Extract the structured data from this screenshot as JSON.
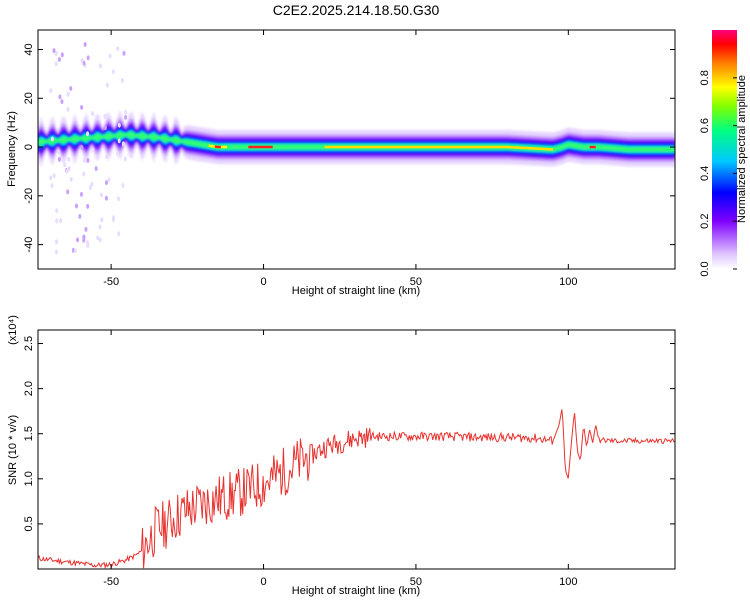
{
  "title": "C2E2.2025.214.18.50.G30",
  "colors": {
    "snr_line": "#e8322e",
    "colorscale": [
      "#ffffff",
      "#e8d8ff",
      "#8000ff",
      "#0000ff",
      "#00c8ff",
      "#00ff80",
      "#ffff00",
      "#ff8000",
      "#ff0000",
      "#ff0080"
    ]
  },
  "chart_data": [
    {
      "type": "heatmap",
      "title": "C2E2.2025.214.18.50.G30",
      "xlabel": "Height of straight line (km)",
      "ylabel": "Frequency (Hz)",
      "xlim": [
        -74,
        135
      ],
      "ylim": [
        -50,
        48
      ],
      "xticks": [
        -50,
        0,
        50,
        100
      ],
      "xtick_labels": [
        "-50",
        "0",
        "50",
        "100"
      ],
      "yticks": [
        -40,
        -20,
        0,
        20,
        40
      ],
      "ytick_labels": [
        "-40",
        "-20",
        "0",
        "20",
        "40"
      ],
      "colorbar": {
        "label": "Normalized spectral amplitude",
        "range": [
          0,
          1
        ],
        "ticks": [
          0.0,
          0.2,
          0.4,
          0.6,
          0.8
        ],
        "tick_labels": [
          "0.0",
          "0.2",
          "0.4",
          "0.6",
          "0.8"
        ]
      },
      "ridge": {
        "height_km": [
          -74,
          -65,
          -55,
          -45,
          -35,
          -25,
          -15,
          -5,
          5,
          20,
          40,
          60,
          80,
          95,
          98,
          100,
          105,
          110,
          120,
          135
        ],
        "freq_hz": [
          2,
          3,
          4,
          5,
          4,
          2,
          0,
          0,
          0,
          0,
          0,
          0,
          0,
          -1,
          0,
          1,
          0,
          0,
          -1,
          -1
        ]
      }
    },
    {
      "type": "line",
      "xlabel": "Height of straight line (km)",
      "ylabel": "SNR (10 * v/v)",
      "y_multiplier": "(x10⁴)",
      "xlim": [
        -74,
        135
      ],
      "ylim": [
        0,
        2.65
      ],
      "xticks": [
        -50,
        0,
        50,
        100
      ],
      "xtick_labels": [
        "-50",
        "0",
        "50",
        "100"
      ],
      "yticks": [
        0.5,
        1.0,
        1.5,
        2.0,
        2.5
      ],
      "ytick_labels": [
        "0.5",
        "1.0",
        "1.5",
        "2.0",
        "2.5"
      ],
      "series": [
        {
          "x": [
            -74,
            -70,
            -65,
            -60,
            -55,
            -50,
            -45,
            -42,
            -40,
            -38,
            -35,
            -32,
            -30,
            -28,
            -25,
            -22,
            -20,
            -15,
            -10,
            -5,
            0,
            5,
            10,
            15,
            20,
            25,
            30,
            35,
            40,
            50,
            60,
            70,
            80,
            90,
            95,
            97,
            98,
            99,
            100,
            101,
            102,
            103,
            104,
            105,
            106,
            107,
            108,
            109,
            110,
            115,
            120,
            125,
            130,
            135
          ],
          "y": [
            0.12,
            0.1,
            0.08,
            0.06,
            0.04,
            0.05,
            0.1,
            0.15,
            0.2,
            0.3,
            0.45,
            0.5,
            0.55,
            0.6,
            0.65,
            0.7,
            0.72,
            0.78,
            0.82,
            0.88,
            0.95,
            1.05,
            1.15,
            1.25,
            1.35,
            1.4,
            1.45,
            1.47,
            1.47,
            1.47,
            1.47,
            1.46,
            1.46,
            1.45,
            1.42,
            1.6,
            1.8,
            1.1,
            1.0,
            1.4,
            1.75,
            1.3,
            1.2,
            1.6,
            1.35,
            1.55,
            1.4,
            1.6,
            1.43,
            1.42,
            1.42,
            1.42,
            1.42,
            1.42
          ]
        }
      ]
    }
  ]
}
